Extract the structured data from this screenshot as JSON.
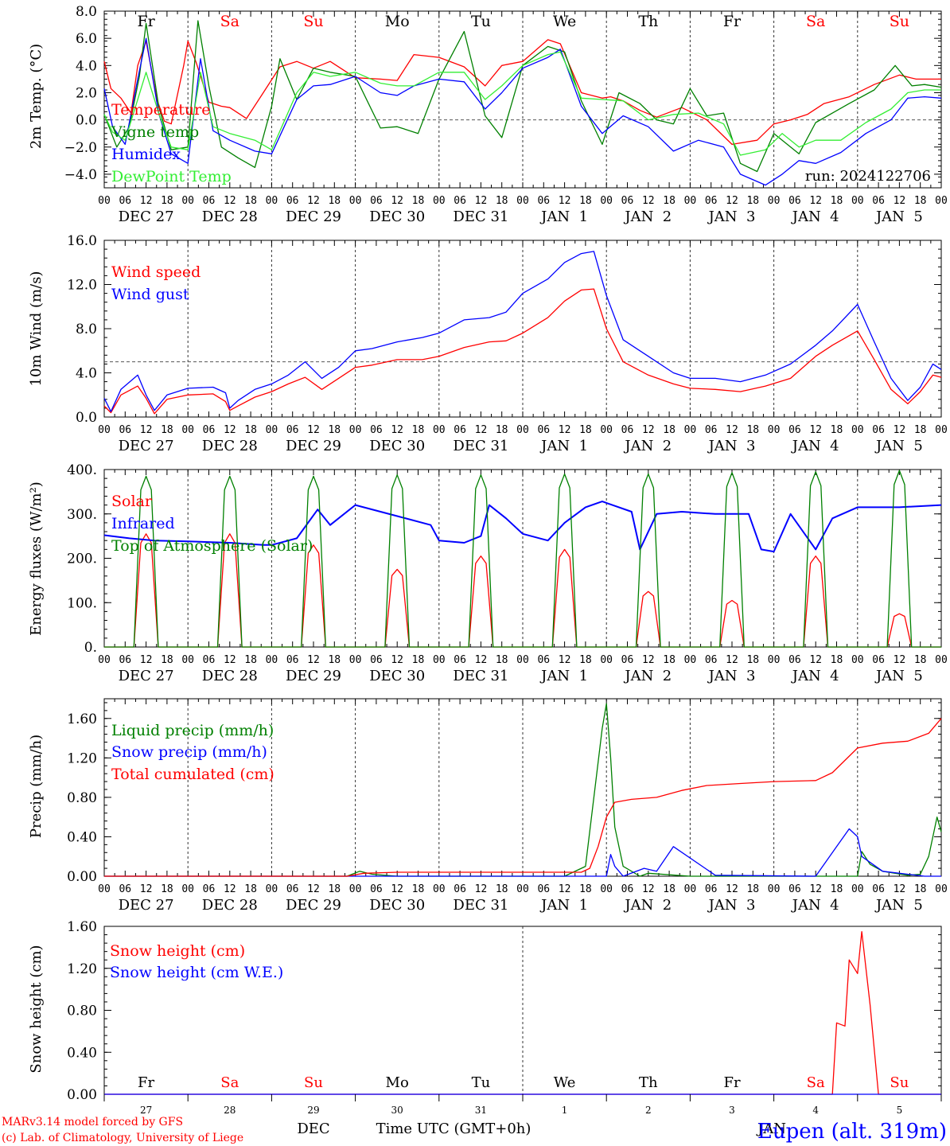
{
  "colors": {
    "red": "#ff0000",
    "green": "#008000",
    "blue": "#0000ff",
    "lightgreen": "#33ee33",
    "black": "#000000",
    "grid": "#555555"
  },
  "days": [
    "Fr",
    "Sa",
    "Su",
    "Mo",
    "Tu",
    "We",
    "Th",
    "Fr",
    "Sa",
    "Su"
  ],
  "weekend_days": [
    "Sa",
    "Su"
  ],
  "hour_ticks": [
    "00",
    "06",
    "12",
    "18"
  ],
  "date_labels": [
    "DEC 27",
    "DEC 28",
    "DEC 29",
    "DEC 30",
    "DEC 31",
    "JAN  1",
    "JAN  2",
    "JAN  3",
    "JAN  4",
    "JAN  5"
  ],
  "day_numbers": [
    "27",
    "28",
    "29",
    "30",
    "31",
    "1",
    "2",
    "3",
    "4",
    "5"
  ],
  "footer": {
    "month_dec": "DEC",
    "month_jan": "JAN",
    "time_label": "Time UTC (GMT+0h)",
    "model_line": "MARv3.14 model forced by GFS",
    "copyright_line": "(c) Lab. of Climatology, University of Liege",
    "station": "Eupen (alt. 319m)"
  },
  "chart_data": [
    {
      "type": "line",
      "ylabel": "2m Temp. (°C)",
      "ylim": [
        -5.0,
        8.0
      ],
      "yticks": [
        "8.0",
        "6.0",
        "4.0",
        "2.0",
        "0.0",
        "−2.0",
        "−4.0"
      ],
      "ytick_values": [
        8,
        6,
        4,
        2,
        0,
        -2,
        -4
      ],
      "ref_line": 0,
      "run_label": "run: 2024122706",
      "x_days": [
        0,
        10
      ],
      "series": [
        {
          "name": "Temperature",
          "color": "#ff0000",
          "x": [
            0,
            0.08,
            0.2,
            0.32,
            0.4,
            0.5,
            0.63,
            0.72,
            0.8,
            0.95,
            1.0,
            1.1,
            1.25,
            1.4,
            1.5,
            1.7,
            1.9,
            2.1,
            2.3,
            2.5,
            2.7,
            3.0,
            3.3,
            3.5,
            3.7,
            4.0,
            4.3,
            4.55,
            4.75,
            5.0,
            5.3,
            5.45,
            5.7,
            5.95,
            6.05,
            6.2,
            6.4,
            6.6,
            6.9,
            7.2,
            7.5,
            7.8,
            8.0,
            8.2,
            8.4,
            8.6,
            8.9,
            9.2,
            9.5,
            9.7,
            10.0
          ],
          "y": [
            4.3,
            2.3,
            1.6,
            0.5,
            4.0,
            5.8,
            1.5,
            -0.1,
            -0.3,
            4.0,
            5.8,
            4.2,
            1.3,
            1.0,
            0.9,
            0.1,
            2.0,
            3.9,
            4.3,
            3.8,
            4.3,
            3.1,
            3.0,
            2.9,
            4.8,
            4.6,
            3.9,
            2.5,
            4.0,
            4.3,
            5.9,
            5.6,
            2.0,
            1.6,
            1.7,
            1.4,
            0.7,
            0.2,
            0.9,
            0.0,
            -1.8,
            -1.5,
            -0.3,
            0.0,
            0.4,
            1.2,
            1.7,
            2.6,
            3.3,
            3.0,
            3.0
          ]
        },
        {
          "name": "Vigne temp",
          "color": "#008000",
          "x": [
            0,
            0.15,
            0.3,
            0.42,
            0.5,
            0.65,
            0.8,
            1.0,
            1.12,
            1.25,
            1.4,
            1.6,
            1.8,
            2.0,
            2.1,
            2.3,
            2.5,
            2.7,
            3.0,
            3.3,
            3.5,
            3.75,
            4.0,
            4.3,
            4.55,
            4.75,
            5.0,
            5.3,
            5.5,
            5.7,
            5.95,
            6.15,
            6.4,
            6.6,
            6.8,
            7.0,
            7.2,
            7.4,
            7.6,
            7.8,
            8.0,
            8.3,
            8.5,
            8.7,
            8.9,
            9.2,
            9.45,
            9.65,
            9.8,
            10.0
          ],
          "y": [
            0.4,
            -2.0,
            -0.5,
            3.2,
            7.1,
            1.0,
            -2.2,
            -2.0,
            7.3,
            2.5,
            -2.0,
            -2.8,
            -3.5,
            1.0,
            4.5,
            1.5,
            3.8,
            3.5,
            3.2,
            -0.6,
            -0.5,
            -1.0,
            3.0,
            6.5,
            0.3,
            -1.3,
            4.0,
            5.4,
            5.0,
            1.4,
            -1.8,
            2.0,
            1.2,
            0.0,
            -0.3,
            2.3,
            0.3,
            0.5,
            -3.2,
            -3.8,
            -1.0,
            -2.5,
            -0.2,
            0.5,
            1.2,
            2.2,
            4.0,
            2.5,
            2.6,
            2.4
          ]
        },
        {
          "name": "Humidex",
          "color": "#0000ff",
          "x": [
            0,
            0.1,
            0.25,
            0.4,
            0.5,
            0.65,
            0.8,
            1.0,
            1.15,
            1.3,
            1.5,
            1.8,
            2.0,
            2.3,
            2.5,
            2.7,
            3.0,
            3.3,
            3.5,
            3.7,
            4.0,
            4.3,
            4.55,
            4.75,
            5.0,
            5.3,
            5.45,
            5.7,
            5.95,
            6.2,
            6.5,
            6.8,
            7.1,
            7.4,
            7.6,
            7.9,
            8.1,
            8.3,
            8.5,
            8.8,
            9.1,
            9.4,
            9.6,
            9.8,
            10.0
          ],
          "y": [
            2.3,
            -0.5,
            -1.8,
            3.0,
            6.0,
            0.5,
            -2.5,
            -3.2,
            4.5,
            -0.8,
            -1.5,
            -2.3,
            -2.5,
            1.5,
            2.5,
            2.6,
            3.2,
            2.0,
            1.8,
            2.5,
            3.0,
            2.8,
            0.8,
            2.0,
            3.8,
            4.6,
            5.2,
            1.0,
            -1.0,
            0.3,
            -0.5,
            -2.3,
            -1.5,
            -2.0,
            -4.0,
            -4.8,
            -4.0,
            -3.0,
            -3.2,
            -2.4,
            -1.0,
            0.0,
            1.6,
            1.7,
            1.6
          ]
        },
        {
          "name": "DewPoint Temp",
          "color": "#33ee33",
          "x": [
            0,
            0.1,
            0.25,
            0.4,
            0.5,
            0.65,
            0.8,
            1.0,
            1.15,
            1.3,
            1.5,
            1.8,
            2.0,
            2.3,
            2.5,
            2.7,
            3.0,
            3.3,
            3.5,
            3.7,
            4.0,
            4.3,
            4.55,
            4.75,
            5.0,
            5.3,
            5.45,
            5.7,
            5.95,
            6.2,
            6.5,
            6.8,
            7.1,
            7.4,
            7.6,
            7.9,
            8.1,
            8.3,
            8.5,
            8.8,
            9.1,
            9.4,
            9.6,
            9.8,
            10.0
          ],
          "y": [
            0.4,
            -0.9,
            -1.5,
            1.5,
            3.5,
            0.5,
            -2.0,
            -2.2,
            3.5,
            -0.5,
            -1.0,
            -1.5,
            -2.2,
            2.0,
            3.5,
            3.2,
            3.5,
            2.7,
            2.5,
            2.5,
            3.5,
            3.5,
            1.5,
            2.5,
            4.0,
            4.8,
            5.0,
            1.6,
            1.5,
            1.4,
            0.0,
            0.4,
            0.5,
            -0.3,
            -2.6,
            -2.2,
            -1.0,
            -2.0,
            -1.5,
            -1.5,
            -0.2,
            0.8,
            2.0,
            2.2,
            2.2
          ]
        }
      ]
    },
    {
      "type": "line",
      "ylabel": "10m Wind (m/s)",
      "ylim": [
        0,
        16
      ],
      "yticks": [
        "16.0",
        "12.0",
        "8.0",
        "4.0",
        "0.0"
      ],
      "ytick_values": [
        16,
        12,
        8,
        4,
        0
      ],
      "ref_line": 5,
      "series": [
        {
          "name": "Wind speed",
          "color": "#ff0000",
          "x": [
            0,
            0.08,
            0.2,
            0.4,
            0.5,
            0.6,
            0.75,
            1.0,
            1.3,
            1.45,
            1.5,
            1.6,
            1.8,
            2.0,
            2.2,
            2.4,
            2.6,
            2.8,
            3.0,
            3.2,
            3.5,
            3.8,
            4.0,
            4.3,
            4.6,
            4.8,
            5.0,
            5.3,
            5.5,
            5.7,
            5.85,
            6.0,
            6.2,
            6.5,
            6.8,
            7.0,
            7.3,
            7.6,
            7.9,
            8.2,
            8.5,
            8.7,
            9.0,
            9.2,
            9.4,
            9.6,
            9.75,
            9.9,
            10.0
          ],
          "y": [
            1.0,
            0.4,
            2.0,
            2.8,
            1.7,
            0.3,
            1.6,
            2.0,
            2.1,
            1.4,
            0.6,
            1.0,
            1.8,
            2.3,
            3.0,
            3.6,
            2.5,
            3.5,
            4.5,
            4.7,
            5.2,
            5.2,
            5.5,
            6.3,
            6.8,
            6.9,
            7.6,
            9.0,
            10.5,
            11.5,
            11.6,
            8.0,
            5.0,
            3.8,
            3.0,
            2.6,
            2.5,
            2.3,
            2.8,
            3.5,
            5.5,
            6.5,
            7.8,
            5.2,
            2.5,
            1.2,
            2.3,
            3.8,
            3.6
          ]
        },
        {
          "name": "Wind gust",
          "color": "#0000ff",
          "x": [
            0,
            0.08,
            0.2,
            0.4,
            0.5,
            0.6,
            0.75,
            1.0,
            1.3,
            1.45,
            1.5,
            1.6,
            1.8,
            2.0,
            2.2,
            2.4,
            2.6,
            2.8,
            3.0,
            3.2,
            3.5,
            3.8,
            4.0,
            4.3,
            4.6,
            4.8,
            5.0,
            5.3,
            5.5,
            5.7,
            5.85,
            6.0,
            6.2,
            6.5,
            6.8,
            7.0,
            7.3,
            7.6,
            7.9,
            8.2,
            8.5,
            8.7,
            9.0,
            9.2,
            9.4,
            9.6,
            9.75,
            9.9,
            10.0
          ],
          "y": [
            1.7,
            0.5,
            2.5,
            3.8,
            2.0,
            0.6,
            2.0,
            2.6,
            2.7,
            2.2,
            0.8,
            1.5,
            2.5,
            3.0,
            3.8,
            5.0,
            3.5,
            4.5,
            6.0,
            6.2,
            6.8,
            7.2,
            7.6,
            8.8,
            9.0,
            9.5,
            11.2,
            12.5,
            14.0,
            14.8,
            15.0,
            11.0,
            7.0,
            5.5,
            4.0,
            3.5,
            3.5,
            3.2,
            3.8,
            4.8,
            6.5,
            7.8,
            10.2,
            6.8,
            3.5,
            1.5,
            2.7,
            4.8,
            4.3
          ]
        }
      ]
    },
    {
      "type": "line",
      "ylabel": "Energy fluxes (W/m²)",
      "ylim": [
        0,
        400
      ],
      "yticks": [
        "400.",
        "300.",
        "200.",
        "100.",
        "0."
      ],
      "ytick_values": [
        400,
        300,
        200,
        100,
        0
      ],
      "series": [
        {
          "name": "Solar",
          "color": "#ff0000",
          "kind": "daily_peaks",
          "peaks": [
            255,
            255,
            230,
            175,
            205,
            220,
            125,
            105,
            205,
            75
          ]
        },
        {
          "name": "Infrared",
          "color": "#0000ff",
          "x": [
            0,
            0.3,
            0.6,
            1.0,
            1.5,
            1.9,
            2.0,
            2.3,
            2.55,
            2.7,
            3.0,
            3.5,
            3.9,
            4.0,
            4.3,
            4.5,
            4.6,
            4.8,
            5.0,
            5.3,
            5.5,
            5.75,
            5.95,
            6.3,
            6.4,
            6.6,
            6.9,
            7.3,
            7.7,
            7.85,
            8.0,
            8.2,
            8.5,
            8.7,
            9.0,
            9.5,
            10.0
          ],
          "y": [
            252,
            245,
            240,
            238,
            235,
            230,
            230,
            245,
            310,
            275,
            320,
            295,
            275,
            240,
            235,
            250,
            320,
            290,
            255,
            240,
            280,
            315,
            328,
            305,
            220,
            300,
            305,
            300,
            300,
            220,
            215,
            300,
            220,
            290,
            315,
            315,
            320
          ]
        },
        {
          "name": "Top of Atmosphere (Solar)",
          "color": "#008000",
          "kind": "daily_peaks",
          "peaks": [
            385,
            385,
            385,
            388,
            388,
            390,
            390,
            393,
            395,
            398
          ]
        }
      ]
    },
    {
      "type": "line",
      "ylabel": "Precip (mm/h)",
      "ylim": [
        0,
        1.8
      ],
      "yticks": [
        "1.60",
        "1.20",
        "0.80",
        "0.40",
        "0.00"
      ],
      "ytick_values": [
        1.6,
        1.2,
        0.8,
        0.4,
        0
      ],
      "series": [
        {
          "name": "Liquid precip (mm/h)",
          "color": "#008000",
          "x": [
            0,
            2.9,
            3.05,
            3.2,
            3.5,
            5.5,
            5.75,
            5.85,
            5.95,
            6.0,
            6.05,
            6.1,
            6.2,
            6.4,
            6.5,
            7.0,
            8.0,
            9.0,
            9.05,
            9.15,
            9.3,
            9.6,
            9.75,
            9.85,
            9.95,
            10.0
          ],
          "y": [
            0,
            0,
            0.05,
            0.02,
            0,
            0,
            0.1,
            0.8,
            1.5,
            1.75,
            1.2,
            0.5,
            0.1,
            0,
            0.03,
            0,
            0,
            0,
            0.25,
            0.12,
            0.05,
            0.01,
            0.02,
            0.2,
            0.6,
            0.45
          ]
        },
        {
          "name": "Snow precip (mm/h)",
          "color": "#0000ff",
          "x": [
            0,
            6.0,
            6.05,
            6.1,
            6.2,
            6.45,
            6.6,
            6.8,
            7.3,
            8.5,
            8.75,
            8.9,
            9.0,
            9.05,
            9.3,
            9.8,
            10.0
          ],
          "y": [
            0,
            0,
            0.22,
            0.1,
            0,
            0.08,
            0.05,
            0.3,
            0.01,
            0,
            0.3,
            0.48,
            0.4,
            0.2,
            0.05,
            0,
            0
          ]
        },
        {
          "name": "Total cumulated (cm)",
          "color": "#ff0000",
          "x": [
            0,
            2.9,
            3.1,
            3.5,
            4.0,
            5.7,
            5.8,
            5.9,
            6.0,
            6.1,
            6.3,
            6.6,
            6.9,
            7.2,
            7.6,
            8.0,
            8.5,
            8.7,
            9.0,
            9.3,
            9.6,
            9.85,
            10.0
          ],
          "y": [
            0,
            0,
            0.03,
            0.04,
            0.04,
            0.04,
            0.08,
            0.3,
            0.6,
            0.75,
            0.78,
            0.8,
            0.87,
            0.92,
            0.94,
            0.96,
            0.97,
            1.05,
            1.3,
            1.35,
            1.37,
            1.45,
            1.6
          ]
        }
      ]
    },
    {
      "type": "line",
      "ylabel": "Snow height (cm)",
      "ylim": [
        0,
        1.6
      ],
      "yticks": [
        "1.60",
        "1.20",
        "0.80",
        "0.40",
        "0.00"
      ],
      "ytick_values": [
        1.6,
        1.2,
        0.8,
        0.4,
        0
      ],
      "series": [
        {
          "name": "Snow height (cm)",
          "color": "#ff0000",
          "x": [
            0,
            8.7,
            8.75,
            8.85,
            8.9,
            9.0,
            9.05,
            9.15,
            9.25,
            9.3,
            10.0
          ],
          "y": [
            0,
            0,
            0.68,
            0.65,
            1.28,
            1.15,
            1.55,
            0.85,
            0,
            0,
            0
          ]
        },
        {
          "name": "Snow height (cm W.E.)",
          "color": "#0000ff",
          "x": [
            0,
            10.0
          ],
          "y": [
            0,
            0
          ]
        }
      ]
    }
  ]
}
